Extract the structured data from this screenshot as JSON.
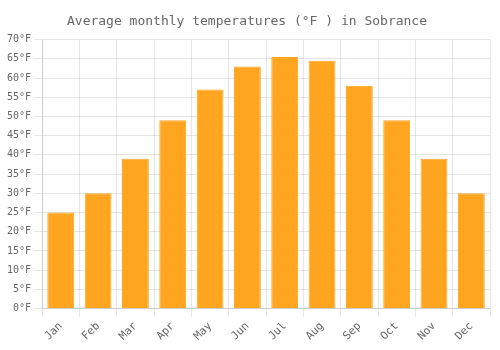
{
  "chart_data": {
    "type": "bar",
    "title": "Average monthly temperatures (°F ) in Sobrance",
    "categories": [
      "Jan",
      "Feb",
      "Mar",
      "Apr",
      "May",
      "Jun",
      "Jul",
      "Aug",
      "Sep",
      "Oct",
      "Nov",
      "Dec"
    ],
    "values": [
      25,
      30,
      39,
      49,
      57,
      63,
      65.5,
      64.5,
      58,
      49,
      39,
      30
    ],
    "color": "#FFA520",
    "ylim": [
      0,
      70
    ],
    "yticks": [
      {
        "value": 0,
        "label": "0°F"
      },
      {
        "value": 5,
        "label": "5°F"
      },
      {
        "value": 10,
        "label": "10°F"
      },
      {
        "value": 15,
        "label": "15°F"
      },
      {
        "value": 20,
        "label": "20°F"
      },
      {
        "value": 25,
        "label": "25°F"
      },
      {
        "value": 30,
        "label": "30°F"
      },
      {
        "value": 35,
        "label": "35°F"
      },
      {
        "value": 40,
        "label": "40°F"
      },
      {
        "value": 45,
        "label": "45°F"
      },
      {
        "value": 50,
        "label": "50°F"
      },
      {
        "value": 55,
        "label": "55°F"
      },
      {
        "value": 60,
        "label": "60°F"
      },
      {
        "value": 65,
        "label": "65°F"
      },
      {
        "value": 70,
        "label": "70°F"
      }
    ],
    "grid": true
  }
}
